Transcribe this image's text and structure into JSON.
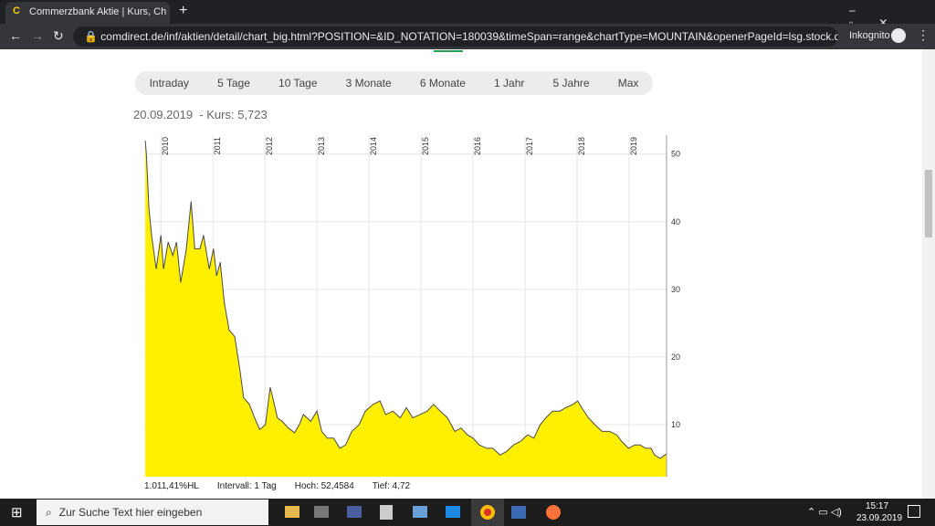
{
  "browser": {
    "tab_title": "Commerzbank Aktie | Kurs, Chart",
    "url": "comdirect.de/inf/aktien/detail/chart_big.html?POSITION=&ID_NOTATION=180039&timeSpan=range&chartType=MOUNTAIN&openerPageId=lsg.stock.detail.chart&B...",
    "mode": "Inkognito"
  },
  "page": {
    "time_ranges": [
      "Intraday",
      "5 Tage",
      "10 Tage",
      "3 Monate",
      "6 Monate",
      "1 Jahr",
      "5 Jahre",
      "Max"
    ],
    "quote_date": "20.09.2019",
    "quote": "- Kurs: 5,723",
    "footer": [
      "1.011,41%HL",
      "Intervall: 1 Tag",
      "Hoch: 52,4584",
      "Tief: 4,72"
    ]
  },
  "chart_data": {
    "type": "area",
    "x": [
      2009.7,
      2009.72,
      2009.77,
      2009.82,
      2009.91,
      2010.0,
      2010.05,
      2010.14,
      2010.23,
      2010.3,
      2010.38,
      2010.49,
      2010.58,
      2010.65,
      2010.75,
      2010.82,
      2010.93,
      2011.01,
      2011.07,
      2011.14,
      2011.22,
      2011.31,
      2011.42,
      2011.52,
      2011.59,
      2011.7,
      2011.8,
      2011.9,
      2012.01,
      2012.1,
      2012.15,
      2012.24,
      2012.33,
      2012.45,
      2012.57,
      2012.66,
      2012.74,
      2012.88,
      2013.0,
      2013.09,
      2013.2,
      2013.32,
      2013.44,
      2013.55,
      2013.67,
      2013.81,
      2013.93,
      2014.08,
      2014.21,
      2014.32,
      2014.46,
      2014.6,
      2014.72,
      2014.84,
      2014.98,
      2015.12,
      2015.24,
      2015.37,
      2015.51,
      2015.65,
      2015.77,
      2015.89,
      2016.0,
      2016.12,
      2016.26,
      2016.38,
      2016.52,
      2016.64,
      2016.78,
      2016.91,
      2017.05,
      2017.17,
      2017.29,
      2017.4,
      2017.53,
      2017.67,
      2017.78,
      2017.92,
      2018.01,
      2018.09,
      2018.22,
      2018.34,
      2018.48,
      2018.62,
      2018.76,
      2018.86,
      2018.99,
      2019.11,
      2019.21,
      2019.32,
      2019.42,
      2019.49,
      2019.6,
      2019.72
    ],
    "values": [
      52,
      50,
      42,
      38,
      33,
      38,
      33,
      37,
      35,
      37,
      31,
      36,
      43,
      36,
      36,
      38,
      33,
      36,
      32,
      34,
      28,
      24,
      23,
      18,
      14,
      13,
      11,
      9.3,
      10,
      15.5,
      14,
      11,
      10.5,
      9.5,
      8.8,
      10,
      11.5,
      10.5,
      12,
      9,
      8,
      8,
      6.5,
      7,
      9,
      10,
      12,
      13,
      13.5,
      11.5,
      12,
      11,
      12.5,
      11,
      11.5,
      12,
      13,
      12,
      11,
      9,
      9.5,
      8.5,
      8,
      7,
      6.5,
      6.5,
      5.5,
      6,
      7,
      7.5,
      8.5,
      8,
      10,
      11,
      12,
      12,
      12.5,
      13,
      13.5,
      12.5,
      11,
      10,
      9,
      9,
      8.5,
      7.5,
      6.5,
      7,
      7,
      6.5,
      6.5,
      5.5,
      5,
      5.7
    ],
    "color": "#fff000",
    "line_color": "#4a4a4a",
    "xlim": [
      2009.68,
      2019.72
    ],
    "xticks": [
      2010,
      2011,
      2012,
      2013,
      2014,
      2015,
      2016,
      2017,
      2018,
      2019
    ],
    "ylim": [
      2.3,
      52.8
    ],
    "yticks": [
      10,
      20,
      30,
      40,
      50
    ],
    "grid": true,
    "y_axis_side": "right"
  },
  "taskbar": {
    "search": "Zur Suche Text hier eingeben",
    "time": "15:17",
    "date": "23.09.2019"
  }
}
